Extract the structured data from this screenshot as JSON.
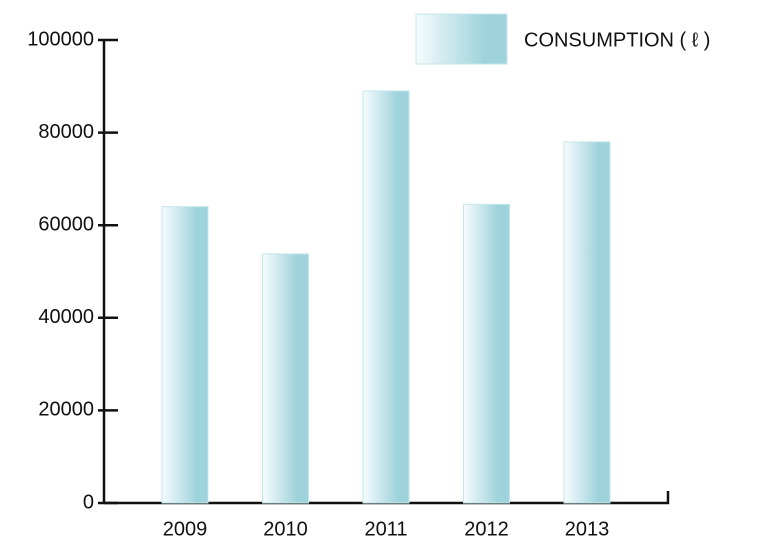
{
  "chart_data": {
    "type": "bar",
    "categories": [
      "2009",
      "2010",
      "2011",
      "2012",
      "2013"
    ],
    "series": [
      {
        "name": "CONSUMPTION ( ℓ )",
        "color": "#9fd3dc",
        "values": [
          64000,
          53800,
          89000,
          64500,
          78000
        ]
      }
    ],
    "ylim": [
      0,
      100000
    ],
    "yticks": [
      0,
      20000,
      40000,
      60000,
      80000,
      100000
    ],
    "legend": "top-right"
  }
}
